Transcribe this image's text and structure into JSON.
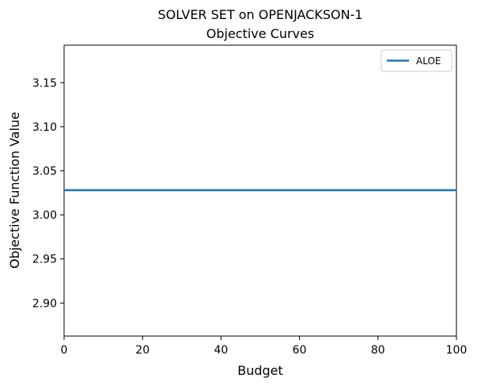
{
  "chart_data": {
    "type": "line",
    "title": "SOLVER SET on OPENJACKSON-1",
    "subtitle": "Objective Curves",
    "xlabel": "Budget",
    "ylabel": "Objective Function Value",
    "xlim": [
      0,
      100
    ],
    "ylim": [
      2.8625,
      3.1925
    ],
    "xticks": [
      0,
      20,
      40,
      60,
      80,
      100
    ],
    "yticks": [
      2.9,
      2.95,
      3.0,
      3.05,
      3.1,
      3.15
    ],
    "xtick_labels": [
      "0",
      "20",
      "40",
      "60",
      "80",
      "100"
    ],
    "ytick_labels": [
      "2.90",
      "2.95",
      "3.00",
      "3.05",
      "3.10",
      "3.15"
    ],
    "grid": false,
    "legend_position": "top-right",
    "series": [
      {
        "name": "ALOE",
        "color": "#1f77b4",
        "x": [
          0,
          100
        ],
        "y": [
          3.028,
          3.028
        ]
      }
    ]
  }
}
